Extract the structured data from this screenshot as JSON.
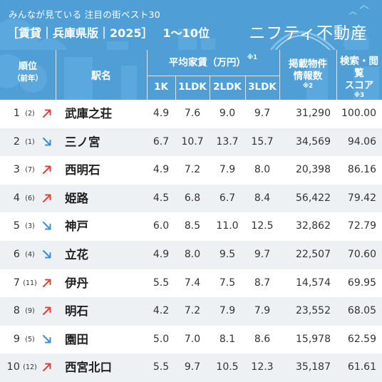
{
  "header": {
    "subtitle": "みんなが見ている 注目の街ベスト30",
    "title": "［賃貸｜兵庫県版｜2025］",
    "range": "1〜10位",
    "brand": "ニフティ不動産"
  },
  "table": {
    "headers": {
      "rank": "順位",
      "rank_prev": "（前年）",
      "station": "駅名",
      "rent": "平均家賃（万円）",
      "rent_note": "※1",
      "rent_1k": "1K",
      "rent_1ldk": "1LDK",
      "rent_2ldk": "2LDK",
      "rent_3ldk": "3LDK",
      "listings_line1": "掲載物件",
      "listings_line2": "情報数",
      "listings_note": "※2",
      "score_line1": "検索・閲覧",
      "score_line2": "スコア",
      "score_note": "※3"
    },
    "colors": {
      "header_bg": "#4f9fd6",
      "up": "#e0413c",
      "down": "#3a8fd0",
      "stripe": "#eef1f4"
    },
    "rows": [
      {
        "rank": "1",
        "prev": "(2)",
        "trend": "up",
        "trend_icon": "arrow-up-right-icon",
        "station": "武庫之荘",
        "r1k": "4.9",
        "r1ldk": "7.6",
        "r2ldk": "9.0",
        "r3ldk": "9.7",
        "listings": "31,290",
        "score": "100.00"
      },
      {
        "rank": "2",
        "prev": "(1)",
        "trend": "down",
        "trend_icon": "arrow-down-right-icon",
        "station": "三ノ宮",
        "r1k": "6.7",
        "r1ldk": "10.7",
        "r2ldk": "13.7",
        "r3ldk": "15.7",
        "listings": "34,569",
        "score": "94.06"
      },
      {
        "rank": "3",
        "prev": "(7)",
        "trend": "up",
        "trend_icon": "arrow-up-right-icon",
        "station": "西明石",
        "r1k": "4.9",
        "r1ldk": "7.2",
        "r2ldk": "7.9",
        "r3ldk": "8.0",
        "listings": "20,398",
        "score": "86.16"
      },
      {
        "rank": "4",
        "prev": "(6)",
        "trend": "up",
        "trend_icon": "arrow-up-right-icon",
        "station": "姫路",
        "r1k": "4.5",
        "r1ldk": "6.8",
        "r2ldk": "6.7",
        "r3ldk": "8.4",
        "listings": "56,422",
        "score": "79.42"
      },
      {
        "rank": "5",
        "prev": "(3)",
        "trend": "down",
        "trend_icon": "arrow-down-right-icon",
        "station": "神戸",
        "r1k": "6.0",
        "r1ldk": "8.5",
        "r2ldk": "11.0",
        "r3ldk": "12.5",
        "listings": "32,862",
        "score": "72.79"
      },
      {
        "rank": "6",
        "prev": "(4)",
        "trend": "down",
        "trend_icon": "arrow-down-right-icon",
        "station": "立花",
        "r1k": "4.9",
        "r1ldk": "8.0",
        "r2ldk": "9.5",
        "r3ldk": "9.7",
        "listings": "22,507",
        "score": "70.60"
      },
      {
        "rank": "7",
        "prev": "(11)",
        "trend": "up",
        "trend_icon": "arrow-up-right-icon",
        "station": "伊丹",
        "r1k": "5.5",
        "r1ldk": "7.4",
        "r2ldk": "7.5",
        "r3ldk": "8.7",
        "listings": "14,574",
        "score": "69.95"
      },
      {
        "rank": "8",
        "prev": "(9)",
        "trend": "up",
        "trend_icon": "arrow-up-right-icon",
        "station": "明石",
        "r1k": "4.2",
        "r1ldk": "7.2",
        "r2ldk": "7.9",
        "r3ldk": "7.9",
        "listings": "23,552",
        "score": "68.05"
      },
      {
        "rank": "9",
        "prev": "(5)",
        "trend": "down",
        "trend_icon": "arrow-down-right-icon",
        "station": "園田",
        "r1k": "5.0",
        "r1ldk": "7.0",
        "r2ldk": "8.1",
        "r3ldk": "8.6",
        "listings": "15,978",
        "score": "62.59"
      },
      {
        "rank": "10",
        "prev": "(12)",
        "trend": "up",
        "trend_icon": "arrow-up-right-icon",
        "station": "西宮北口",
        "r1k": "5.5",
        "r1ldk": "9.7",
        "r2ldk": "10.5",
        "r3ldk": "12.3",
        "listings": "35,187",
        "score": "61.61"
      }
    ]
  }
}
